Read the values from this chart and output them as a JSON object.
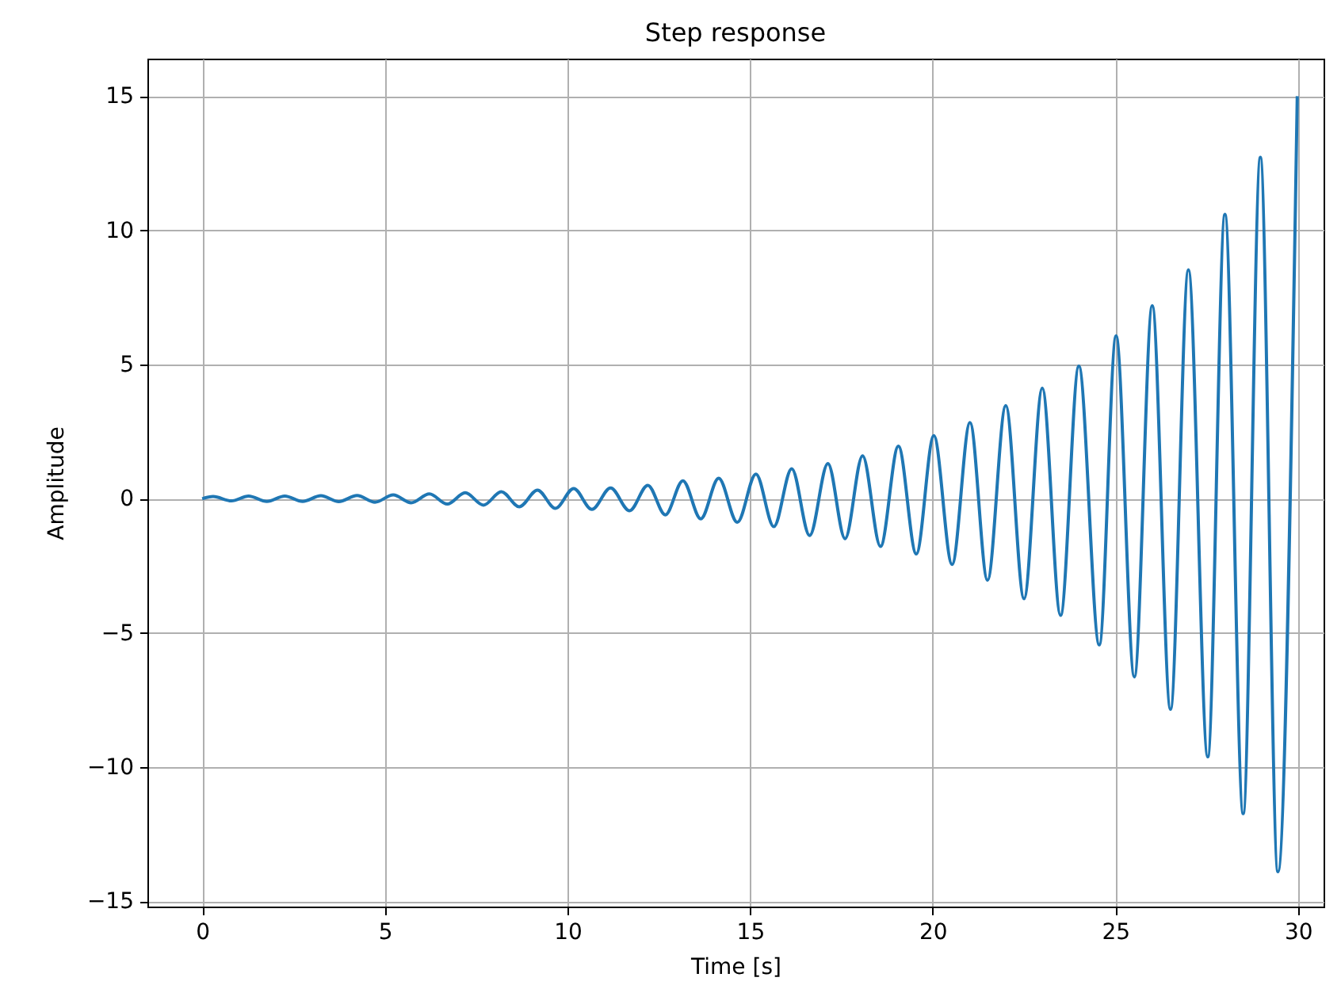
{
  "chart_data": {
    "type": "line",
    "title": "Step response",
    "xlabel": "Time [s]",
    "ylabel": "Amplitude",
    "xlim": [
      -1.5,
      30.7
    ],
    "ylim": [
      -15.2,
      16.4
    ],
    "xticks": [
      0,
      5,
      10,
      15,
      20,
      25,
      30
    ],
    "yticks": [
      -15,
      -10,
      -5,
      0,
      5,
      10,
      15
    ],
    "grid": true,
    "x": [
      0,
      0.3,
      0.8,
      1.27,
      1.77,
      2.26,
      2.75,
      3.25,
      3.74,
      4.24,
      4.73,
      5.23,
      5.72,
      6.22,
      6.71,
      7.2,
      7.7,
      8.19,
      8.68,
      9.18,
      9.67,
      10.17,
      10.67,
      11.18,
      11.7,
      12.2,
      12.68,
      13.16,
      13.65,
      14.14,
      14.65,
      15.16,
      15.65,
      16.14,
      16.63,
      17.13,
      17.6,
      18.08,
      18.57,
      19.06,
      19.55,
      20.03,
      20.53,
      21.02,
      21.5,
      22.0,
      22.5,
      23.0,
      23.5,
      24.0,
      24.56,
      25.02,
      25.52,
      26.01,
      26.51,
      27.0,
      27.53,
      28.0,
      28.5,
      28.97,
      29.45,
      29.98
    ],
    "series": [
      {
        "color": "#1f77b4",
        "values": [
          0,
          0.08,
          -0.08,
          0.1,
          -0.1,
          0.1,
          -0.1,
          0.11,
          -0.11,
          0.12,
          -0.13,
          0.14,
          -0.15,
          0.18,
          -0.2,
          0.22,
          -0.24,
          0.26,
          -0.3,
          0.32,
          -0.36,
          0.38,
          -0.4,
          0.4,
          -0.45,
          0.5,
          -0.6,
          0.67,
          -0.75,
          0.76,
          -0.88,
          0.92,
          -1.04,
          1.12,
          -1.37,
          1.31,
          -1.49,
          1.6,
          -1.78,
          1.96,
          -2.06,
          2.35,
          -2.45,
          2.84,
          -3.04,
          3.47,
          -3.73,
          4.12,
          -4.35,
          4.94,
          -5.45,
          6.07,
          -6.64,
          7.19,
          -7.85,
          8.53,
          -9.62,
          10.6,
          -11.74,
          12.72,
          -13.9,
          15.0
        ]
      }
    ]
  }
}
